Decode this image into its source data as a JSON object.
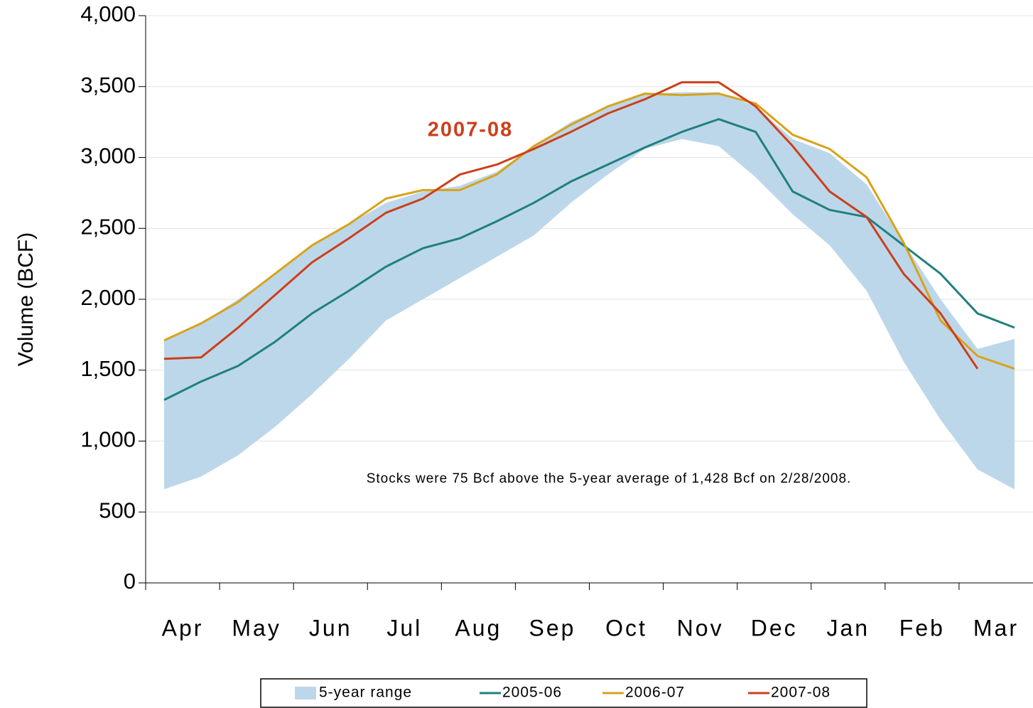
{
  "chart_data": {
    "type": "line",
    "y_label": "Volume (BCF)",
    "annotations": [
      "2007-08",
      "Stocks were 75 Bcf above the 5-year average of 1,428 Bcf on 2/28/2008."
    ],
    "categories": [
      "Apr",
      null,
      "May",
      null,
      "Jun",
      null,
      "Jul",
      null,
      "Aug",
      null,
      "Sep",
      null,
      "Oct",
      null,
      "Nov",
      null,
      "Dec",
      null,
      "Jan",
      null,
      "Feb",
      null,
      "Mar",
      null
    ],
    "range": {
      "name": "5-year range",
      "color": "#bdd7ea",
      "low": [
        660,
        750,
        900,
        1100,
        1330,
        1580,
        1850,
        2000,
        2150,
        2300,
        2450,
        2680,
        2880,
        3060,
        3130,
        3080,
        2860,
        2600,
        2380,
        2060,
        1560,
        1150,
        800,
        660
      ],
      "high": [
        1710,
        1830,
        2000,
        2180,
        2380,
        2530,
        2680,
        2760,
        2800,
        2900,
        3080,
        3250,
        3360,
        3450,
        3460,
        3460,
        3360,
        3130,
        3030,
        2810,
        2400,
        2000,
        1650,
        1720
      ]
    },
    "series": [
      {
        "name": "2005-06",
        "color": "#20807d",
        "values": [
          1290,
          1420,
          1530,
          1700,
          1900,
          2060,
          2230,
          2360,
          2430,
          2550,
          2680,
          2830,
          2950,
          3070,
          3180,
          3270,
          3180,
          2760,
          2630,
          2580,
          2380,
          2180,
          1900,
          1800
        ]
      },
      {
        "name": "2006-07",
        "color": "#d8a31a",
        "values": [
          1710,
          1830,
          1980,
          2180,
          2380,
          2530,
          2710,
          2770,
          2770,
          2880,
          3080,
          3230,
          3360,
          3450,
          3440,
          3450,
          3380,
          3160,
          3060,
          2860,
          2400,
          1850,
          1600,
          1510
        ]
      },
      {
        "name": "2007-08",
        "color": "#cc3f1b",
        "values": [
          1580,
          1590,
          1800,
          2030,
          2260,
          2430,
          2610,
          2710,
          2880,
          2950,
          3060,
          3180,
          3310,
          3410,
          3530,
          3530,
          3360,
          3080,
          2760,
          2580,
          2180,
          1900,
          1510,
          null
        ]
      }
    ],
    "ylim": [
      0,
      4000
    ],
    "yticks": [
      0,
      500,
      {
        "value": 1000,
        "label": "1,000"
      },
      {
        "value": 1500,
        "label": "1,500"
      },
      {
        "value": 2000,
        "label": "2,000"
      },
      {
        "value": 2500,
        "label": "2,500"
      },
      {
        "value": 3000,
        "label": "3,000"
      },
      {
        "value": 3500,
        "label": "3,500"
      },
      {
        "value": 4000,
        "label": "4,000"
      }
    ],
    "grid": true,
    "legend": "bottom"
  }
}
